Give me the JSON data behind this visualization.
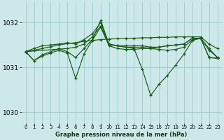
{
  "title": "Graphe pression niveau de la mer (hPa)",
  "bg_color": "#cce8e8",
  "grid_color": "#99cccc",
  "line_color": "#1a5c1a",
  "x_ticks": [
    0,
    1,
    2,
    3,
    4,
    5,
    6,
    7,
    8,
    9,
    10,
    11,
    12,
    13,
    14,
    15,
    16,
    17,
    18,
    19,
    20,
    21,
    22,
    23
  ],
  "y_ticks": [
    1030,
    1031,
    1032
  ],
  "ylim": [
    1029.75,
    1032.45
  ],
  "xlim": [
    -0.5,
    23.5
  ],
  "lines": [
    {
      "x": [
        0,
        1,
        2,
        3,
        4,
        5,
        6,
        7,
        8,
        9,
        10,
        11,
        12,
        13,
        14,
        15,
        16,
        17,
        18,
        19,
        20,
        21,
        22,
        23
      ],
      "y": [
        1031.35,
        1031.15,
        1031.25,
        1031.32,
        1031.38,
        1031.32,
        1030.75,
        1031.3,
        1031.6,
        1031.9,
        1031.48,
        1031.42,
        1031.4,
        1031.4,
        1031.42,
        1031.42,
        1031.4,
        1031.38,
        1031.4,
        1031.45,
        1031.62,
        1031.65,
        1031.22,
        1031.2
      ]
    },
    {
      "x": [
        0,
        1,
        2,
        3,
        4,
        5,
        6,
        7,
        8,
        9,
        10,
        11,
        12,
        13,
        14,
        15,
        16,
        17,
        18,
        19,
        20,
        21,
        22,
        23
      ],
      "y": [
        1031.35,
        1031.15,
        1031.28,
        1031.35,
        1031.42,
        1031.35,
        1031.22,
        1031.42,
        1031.62,
        1032.05,
        1031.52,
        1031.48,
        1031.45,
        1031.42,
        1030.95,
        1030.37,
        1030.62,
        1030.82,
        1031.05,
        1031.3,
        1031.6,
        1031.65,
        1031.22,
        1031.2
      ]
    },
    {
      "x": [
        0,
        1,
        2,
        3,
        4,
        5,
        6,
        7,
        8,
        9,
        10,
        11,
        12,
        13,
        14,
        15,
        16,
        17,
        18,
        19,
        20,
        21,
        22,
        23
      ],
      "y": [
        1031.35,
        1031.38,
        1031.42,
        1031.46,
        1031.5,
        1031.53,
        1031.55,
        1031.58,
        1031.6,
        1031.62,
        1031.63,
        1031.64,
        1031.65,
        1031.65,
        1031.66,
        1031.66,
        1031.67,
        1031.67,
        1031.68,
        1031.68,
        1031.68,
        1031.68,
        1031.52,
        1031.42
      ]
    },
    {
      "x": [
        0,
        1,
        2,
        3,
        4,
        5,
        6,
        7,
        8,
        9,
        10,
        11,
        12,
        13,
        14,
        15,
        16,
        17,
        18,
        19,
        20,
        21,
        22,
        23
      ],
      "y": [
        1031.35,
        1031.42,
        1031.48,
        1031.5,
        1031.52,
        1031.55,
        1031.52,
        1031.62,
        1031.75,
        1032.0,
        1031.5,
        1031.48,
        1031.48,
        1031.48,
        1031.48,
        1031.45,
        1031.45,
        1031.48,
        1031.5,
        1031.52,
        1031.65,
        1031.65,
        1031.38,
        1031.22
      ]
    },
    {
      "x": [
        0,
        5,
        6,
        7,
        8,
        9,
        10,
        11,
        12,
        13,
        14,
        15,
        16,
        17,
        18,
        19,
        20,
        21,
        22,
        23
      ],
      "y": [
        1031.35,
        1031.42,
        1031.45,
        1031.52,
        1031.68,
        1031.92,
        1031.52,
        1031.48,
        1031.45,
        1031.45,
        1031.45,
        1031.42,
        1031.45,
        1031.48,
        1031.5,
        1031.52,
        1031.65,
        1031.65,
        1031.42,
        1031.22
      ]
    }
  ]
}
